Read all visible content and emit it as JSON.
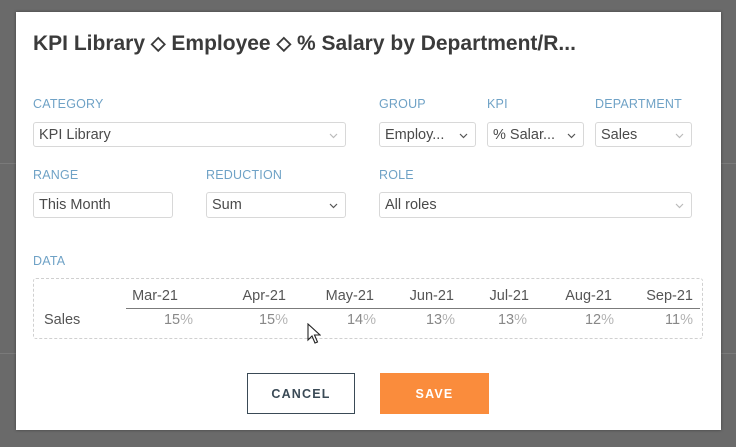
{
  "dialog": {
    "title": "KPI Library ⬦ Employee ⬦ % Salary by Department/R..."
  },
  "fields": {
    "category": {
      "label": "CATEGORY",
      "value": "KPI Library"
    },
    "group": {
      "label": "GROUP",
      "value": "Employ..."
    },
    "kpi": {
      "label": "KPI",
      "value": "% Salar..."
    },
    "department": {
      "label": "DEPARTMENT",
      "value": "Sales"
    },
    "range": {
      "label": "RANGE",
      "value": "This Month"
    },
    "reduction": {
      "label": "REDUCTION",
      "value": "Sum"
    },
    "role": {
      "label": "ROLE",
      "value": "All roles"
    }
  },
  "data_section": {
    "label": "DATA",
    "row_label": "Sales",
    "months": [
      "Mar-21",
      "Apr-21",
      "May-21",
      "Jun-21",
      "Jul-21",
      "Aug-21",
      "Sep-21"
    ],
    "values": [
      "15",
      "15",
      "14",
      "13",
      "13",
      "12",
      "11"
    ],
    "unit": "%"
  },
  "buttons": {
    "cancel": "CANCEL",
    "save": "SAVE"
  },
  "colors": {
    "accent": "#fa8c3c",
    "label": "#6fa2c6",
    "title": "#3b3b3b"
  }
}
